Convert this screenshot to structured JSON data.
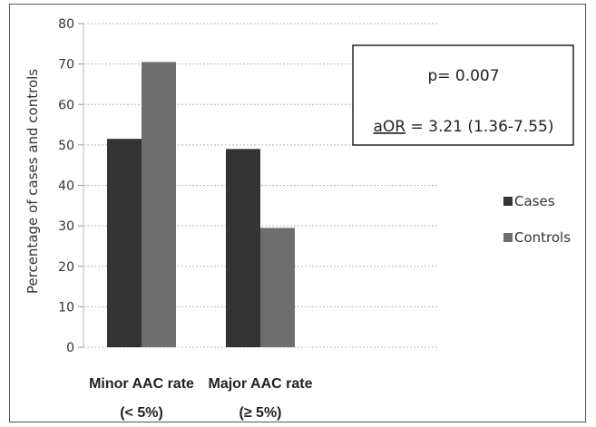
{
  "chart_data": {
    "type": "bar",
    "categories": [
      {
        "line1": "Minor AAC rate",
        "line2": "(< 5%)"
      },
      {
        "line1": "Major AAC rate",
        "line2": "(≥ 5%)"
      }
    ],
    "series": [
      {
        "name": "Cases",
        "values": [
          51.5,
          49
        ],
        "color": "#333333"
      },
      {
        "name": "Controls",
        "values": [
          70.5,
          29.5
        ],
        "color": "#6e6e6e"
      }
    ],
    "ylabel": "Percentage of cases and controls",
    "ylim": [
      0,
      80
    ],
    "yticks": [
      0,
      10,
      20,
      30,
      40,
      50,
      60,
      70,
      80
    ],
    "grid": true,
    "legend_position": "right",
    "annotation": {
      "line1": "p= 0.007",
      "line2_prefix": "aOR",
      "line2_rest": " = 3.21 (1.36-7.55)"
    }
  }
}
